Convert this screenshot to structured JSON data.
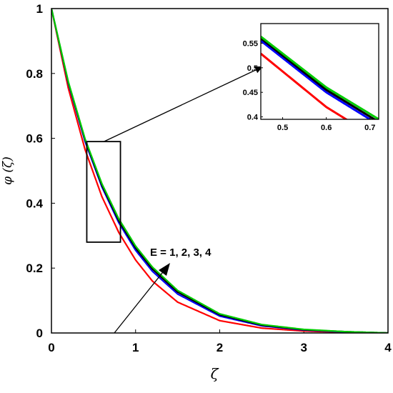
{
  "chart_data": {
    "type": "line",
    "title": "",
    "xlabel": "ζ",
    "ylabel": "φ (ζ)",
    "xlim": [
      0,
      4
    ],
    "ylim": [
      0,
      1
    ],
    "xticks": [
      0,
      1,
      2,
      3,
      4
    ],
    "yticks": [
      0,
      0.2,
      0.4,
      0.6,
      0.8,
      1
    ],
    "grid": false,
    "series": [
      {
        "color": "#ff0000",
        "x": [
          0,
          0.2,
          0.4,
          0.6,
          0.8,
          1.0,
          1.2,
          1.5,
          2.0,
          2.5,
          3.0,
          3.5,
          4.0
        ],
        "y": [
          1.0,
          0.755,
          0.565,
          0.42,
          0.31,
          0.225,
          0.16,
          0.095,
          0.038,
          0.015,
          0.006,
          0.002,
          0.0
        ]
      },
      {
        "color": "#0000ff",
        "x": [
          0,
          0.2,
          0.4,
          0.6,
          0.8,
          1.0,
          1.2,
          1.5,
          2.0,
          2.5,
          3.0,
          3.5,
          4.0
        ],
        "y": [
          1.0,
          0.77,
          0.59,
          0.45,
          0.34,
          0.255,
          0.19,
          0.12,
          0.052,
          0.022,
          0.009,
          0.003,
          0.0
        ]
      },
      {
        "color": "#000000",
        "x": [
          0,
          0.2,
          0.4,
          0.6,
          0.8,
          1.0,
          1.2,
          1.5,
          2.0,
          2.5,
          3.0,
          3.5,
          4.0
        ],
        "y": [
          1.0,
          0.773,
          0.595,
          0.455,
          0.346,
          0.262,
          0.197,
          0.126,
          0.056,
          0.024,
          0.01,
          0.004,
          0.0
        ]
      },
      {
        "color": "#00cc00",
        "x": [
          0,
          0.2,
          0.4,
          0.6,
          0.8,
          1.0,
          1.2,
          1.5,
          2.0,
          2.5,
          3.0,
          3.5,
          4.0
        ],
        "y": [
          1.0,
          0.775,
          0.598,
          0.46,
          0.352,
          0.268,
          0.203,
          0.131,
          0.059,
          0.026,
          0.011,
          0.004,
          0.0
        ]
      }
    ],
    "zoom_box": {
      "xlim": [
        0.42,
        0.82
      ],
      "ylim": [
        0.28,
        0.59
      ]
    },
    "inset": {
      "xlim": [
        0.45,
        0.72
      ],
      "ylim": [
        0.395,
        0.59
      ],
      "xticks": [
        0.5,
        0.6,
        0.7
      ],
      "yticks": [
        0.4,
        0.45,
        0.5,
        0.55
      ],
      "xticklabels": [
        "0.5",
        "0.6",
        "0.7"
      ],
      "yticklabels": [
        "0.4",
        "0.45",
        "0.5",
        "0.55"
      ]
    },
    "annotations": [
      {
        "text": "E = 1, 2, 3, 4"
      }
    ]
  }
}
